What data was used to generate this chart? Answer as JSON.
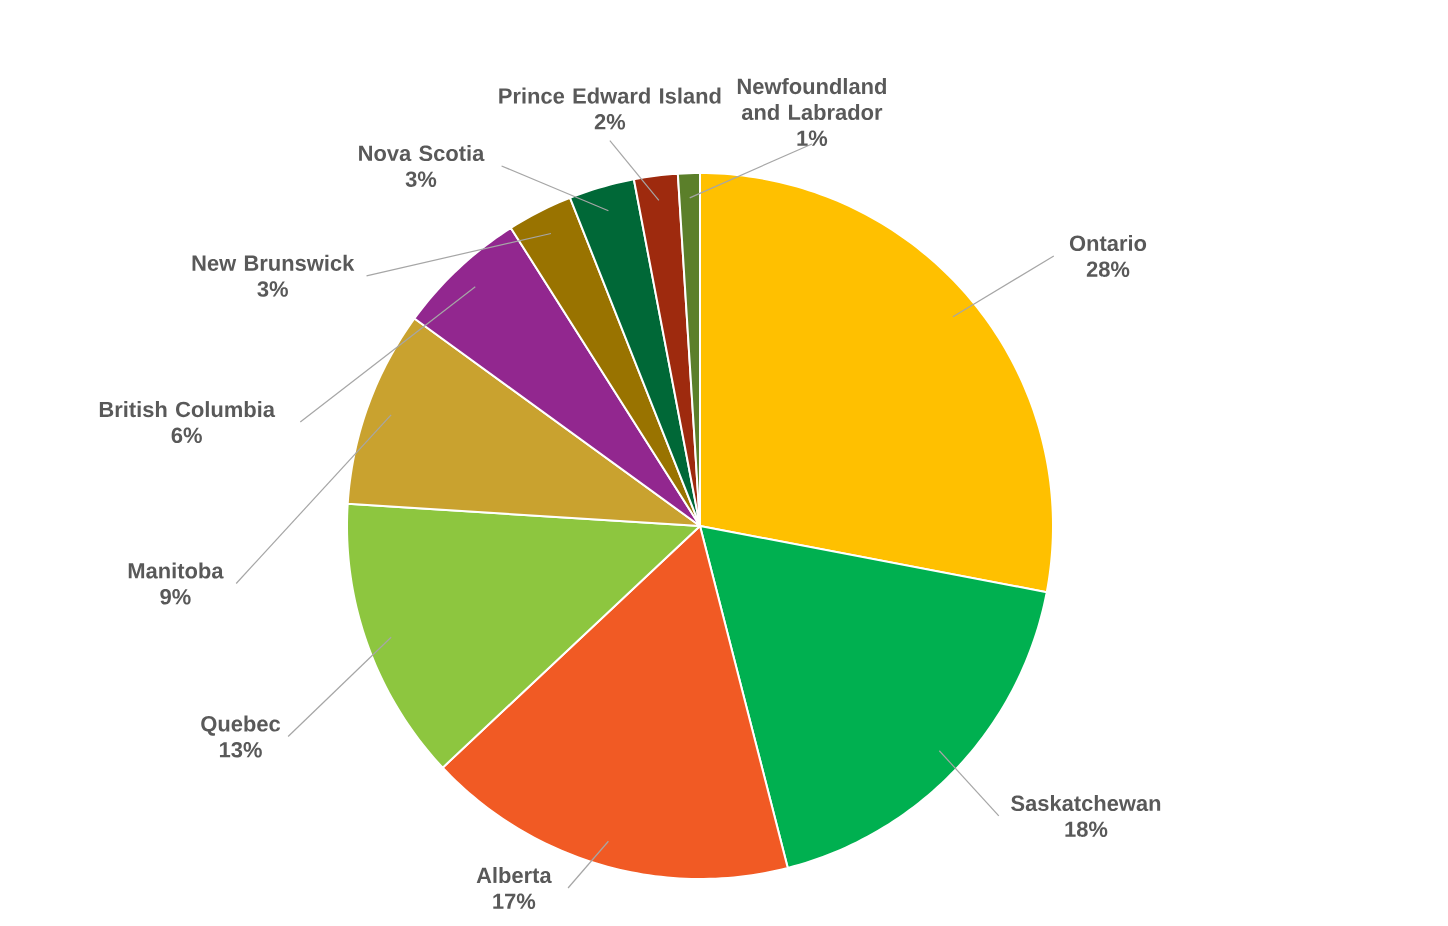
{
  "chart_data": {
    "type": "pie",
    "categories": [
      "Ontario",
      "Saskatchewan",
      "Alberta",
      "Quebec",
      "Manitoba",
      "British Columbia",
      "New Brunswick",
      "Nova Scotia",
      "Prince Edward Island",
      "Newfoundland and Labrador"
    ],
    "values": [
      28,
      18,
      17,
      13,
      9,
      6,
      3,
      3,
      2,
      1
    ],
    "value_labels": [
      "28%",
      "18%",
      "17%",
      "13%",
      "9%",
      "6%",
      "3%",
      "3%",
      "2%",
      "1%"
    ],
    "colors": [
      "#ffc000",
      "#00b050",
      "#f15a24",
      "#8dc63f",
      "#c9a22f",
      "#92278f",
      "#997300",
      "#006837",
      "#9e2a0e",
      "#5b7f2a"
    ]
  }
}
